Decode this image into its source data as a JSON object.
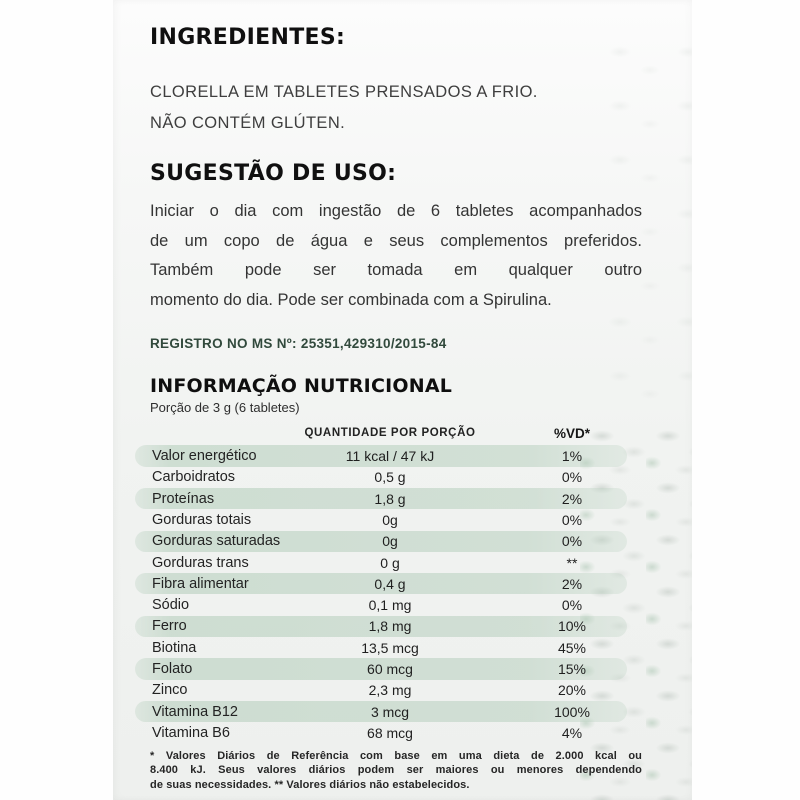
{
  "page": {
    "ingredients_heading": "INGREDIENTES:",
    "ingredients_lines": [
      "CLORELLA EM TABLETES PRENSADOS A FRIO.",
      "NÃO CONTÉM GLÚTEN."
    ],
    "usage_heading": "SUGESTÃO DE USO:",
    "usage_lines": [
      "Iniciar o dia com ingestão de 6 tabletes acompanhados",
      "de um copo de água e seus complementos preferidos.",
      "Também pode ser tomada em qualquer outro",
      "momento do dia. Pode ser combinada com a Spirulina."
    ],
    "registry": "REGISTRO NO MS Nº: 25351,429310/2015-84",
    "nutrition_heading": "INFORMAÇÃO NUTRICIONAL",
    "serving": "Porção de 3 g (6 tabletes)",
    "columns": {
      "quantity": "QUANTIDADE POR PORÇÃO",
      "dv": "%VD*"
    },
    "rows": [
      {
        "name": "Valor energético",
        "qty": "11 kcal / 47 kJ",
        "dv": "1%",
        "shaded": true
      },
      {
        "name": "Carboidratos",
        "qty": "0,5 g",
        "dv": "0%",
        "shaded": false
      },
      {
        "name": "Proteínas",
        "qty": "1,8 g",
        "dv": "2%",
        "shaded": true
      },
      {
        "name": "Gorduras totais",
        "qty": "0g",
        "dv": "0%",
        "shaded": false
      },
      {
        "name": "Gorduras saturadas",
        "qty": "0g",
        "dv": "0%",
        "shaded": true
      },
      {
        "name": "Gorduras trans",
        "qty": "0 g",
        "dv": "**",
        "shaded": false
      },
      {
        "name": "Fibra alimentar",
        "qty": "0,4 g",
        "dv": "2%",
        "shaded": true
      },
      {
        "name": "Sódio",
        "qty": "0,1 mg",
        "dv": "0%",
        "shaded": false
      },
      {
        "name": "Ferro",
        "qty": "1,8 mg",
        "dv": "10%",
        "shaded": true
      },
      {
        "name": "Biotina",
        "qty": "13,5 mcg",
        "dv": "45%",
        "shaded": false
      },
      {
        "name": "Folato",
        "qty": "60 mcg",
        "dv": "15%",
        "shaded": true
      },
      {
        "name": "Zinco",
        "qty": "2,3 mg",
        "dv": "20%",
        "shaded": false
      },
      {
        "name": "Vitamina B12",
        "qty": "3 mcg",
        "dv": "100%",
        "shaded": true
      },
      {
        "name": "Vitamina B6",
        "qty": "68 mcg",
        "dv": "4%",
        "shaded": false
      }
    ],
    "footnote_lines": [
      "* Valores Diários de Referência com base em uma dieta de 2.000 kcal ou",
      "8.400 kJ. Seus valores diários podem ser maiores ou menores dependendo",
      "de suas necessidades. ** Valores diários não estabelecidos."
    ],
    "colors": {
      "row_shade": "#d3e1d7",
      "registry_text": "#31493c"
    }
  }
}
